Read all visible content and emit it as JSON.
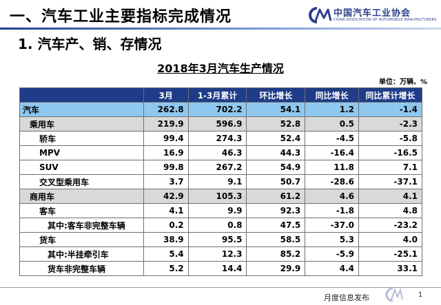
{
  "header": {
    "title": "一、汽车工业主要指标完成情况",
    "logo_cn": "中国汽车工业协会",
    "logo_en": "CHINA ASSOCIATION OF AUTOMOBILE MANUFACTURERS"
  },
  "section_title": "1. 汽车产、销、存情况",
  "table_title": "2018年3月汽车生产情况",
  "unit": "单位：万辆、%",
  "columns": [
    "",
    "3月",
    "1-3月累计",
    "环比增长",
    "同比增长",
    "同比累计增长"
  ],
  "rows": [
    {
      "label": "汽车",
      "level": 0,
      "values": [
        "262.8",
        "702.2",
        "54.1",
        "1.2",
        "-1.4"
      ]
    },
    {
      "label": "乘用车",
      "level": 1,
      "values": [
        "219.9",
        "596.9",
        "52.8",
        "0.5",
        "-2.3"
      ]
    },
    {
      "label": "轿车",
      "level": 2,
      "values": [
        "99.4",
        "274.3",
        "52.4",
        "-4.5",
        "-5.8"
      ]
    },
    {
      "label": "MPV",
      "level": 2,
      "values": [
        "16.9",
        "46.3",
        "44.3",
        "-16.4",
        "-16.5"
      ]
    },
    {
      "label": "SUV",
      "level": 2,
      "values": [
        "99.8",
        "267.2",
        "54.9",
        "11.8",
        "7.1"
      ]
    },
    {
      "label": "交叉型乘用车",
      "level": 2,
      "values": [
        "3.7",
        "9.1",
        "50.7",
        "-28.6",
        "-37.1"
      ]
    },
    {
      "label": "商用车",
      "level": 1,
      "values": [
        "42.9",
        "105.3",
        "61.2",
        "4.6",
        "4.1"
      ]
    },
    {
      "label": "客车",
      "level": 2,
      "values": [
        "4.1",
        "9.9",
        "92.3",
        "-1.8",
        "4.8"
      ]
    },
    {
      "label": "其中:客车非完整车辆",
      "level": 3,
      "values": [
        "0.2",
        "0.8",
        "47.5",
        "-37.0",
        "-23.2"
      ]
    },
    {
      "label": "货车",
      "level": 2,
      "values": [
        "38.9",
        "95.5",
        "58.5",
        "5.3",
        "4.0"
      ]
    },
    {
      "label": "其中:半挂牵引车",
      "level": 3,
      "values": [
        "5.4",
        "12.3",
        "85.2",
        "-5.9",
        "-25.1"
      ]
    },
    {
      "label": "货车非完整车辆",
      "level": 3,
      "values": [
        "5.2",
        "14.4",
        "29.9",
        "4.4",
        "33.1"
      ]
    }
  ],
  "footer": {
    "text": "月度信息发布",
    "page": "1"
  },
  "colors": {
    "header_row": "#1f3c88",
    "level0_row": "#8fc8ef",
    "level1_row": "#d9d9d9"
  }
}
